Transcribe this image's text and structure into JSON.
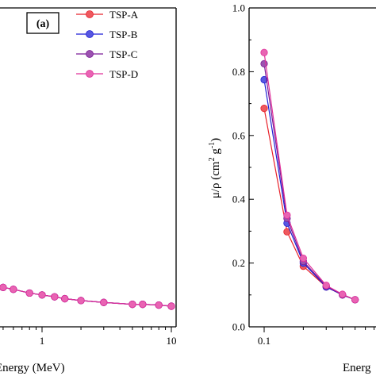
{
  "chart_data": [
    {
      "type": "line",
      "panel_label": "(a)",
      "xlabel": "Energy (MeV)",
      "x_scale": "log",
      "x_ticks": [
        {
          "value": 1,
          "label": "1"
        },
        {
          "value": 10,
          "label": "10"
        }
      ],
      "legend": {
        "position": "top-right"
      },
      "series": [
        {
          "name": "TSP-A",
          "color": "#e8212a",
          "x": [
            0.3,
            0.4,
            0.5,
            0.6,
            0.8,
            1.0,
            1.25,
            1.5,
            2.0,
            3.0,
            5.0,
            6.0,
            8.0,
            10.0
          ],
          "y": [
            0.12,
            0.11,
            0.105,
            0.1,
            0.09,
            0.085,
            0.08,
            0.075,
            0.07,
            0.065,
            0.06,
            0.06,
            0.058,
            0.055
          ]
        },
        {
          "name": "TSP-B",
          "color": "#1f1fd6",
          "x": [
            0.3,
            0.4,
            0.5,
            0.6,
            0.8,
            1.0,
            1.25,
            1.5,
            2.0,
            3.0,
            5.0,
            6.0,
            8.0,
            10.0
          ],
          "y": [
            0.12,
            0.11,
            0.105,
            0.1,
            0.09,
            0.085,
            0.08,
            0.075,
            0.07,
            0.065,
            0.06,
            0.06,
            0.058,
            0.055
          ]
        },
        {
          "name": "TSP-C",
          "color": "#7a1a96",
          "x": [
            0.3,
            0.4,
            0.5,
            0.6,
            0.8,
            1.0,
            1.25,
            1.5,
            2.0,
            3.0,
            5.0,
            6.0,
            8.0,
            10.0
          ],
          "y": [
            0.12,
            0.11,
            0.105,
            0.1,
            0.09,
            0.085,
            0.08,
            0.075,
            0.07,
            0.065,
            0.06,
            0.06,
            0.058,
            0.055
          ]
        },
        {
          "name": "TSP-D",
          "color": "#e0309a",
          "x": [
            0.3,
            0.4,
            0.5,
            0.6,
            0.8,
            1.0,
            1.25,
            1.5,
            2.0,
            3.0,
            5.0,
            6.0,
            8.0,
            10.0
          ],
          "y": [
            0.12,
            0.11,
            0.105,
            0.1,
            0.09,
            0.085,
            0.08,
            0.075,
            0.07,
            0.065,
            0.06,
            0.06,
            0.058,
            0.055
          ]
        }
      ],
      "colors": {
        "TSP-A": "#e8212a",
        "TSP-B": "#1f1fd6",
        "TSP-C": "#7a1a96",
        "TSP-D": "#e0309a"
      }
    },
    {
      "type": "line",
      "xlabel": "Energ",
      "ylabel_main": "μ/ρ (cm",
      "ylabel_sup": "2",
      "ylabel_mid": " g",
      "ylabel_sup2": "-1",
      "ylabel_end": ")",
      "x_scale": "log",
      "x_ticks": [
        {
          "value": 0.1,
          "label": "0.1"
        }
      ],
      "ylim": [
        0.0,
        1.0
      ],
      "y_ticks": [
        {
          "value": 0.0,
          "label": "0.0"
        },
        {
          "value": 0.2,
          "label": "0.2"
        },
        {
          "value": 0.4,
          "label": "0.4"
        },
        {
          "value": 0.6,
          "label": "0.6"
        },
        {
          "value": 0.8,
          "label": "0.8"
        },
        {
          "value": 1.0,
          "label": "1.0"
        }
      ],
      "series": [
        {
          "name": "TSP-A",
          "color": "#e8212a",
          "x": [
            0.1,
            0.15,
            0.2,
            0.3,
            0.4,
            0.5
          ],
          "y": [
            0.685,
            0.298,
            0.19,
            0.125,
            0.1,
            0.085
          ]
        },
        {
          "name": "TSP-B",
          "color": "#1f1fd6",
          "x": [
            0.1,
            0.15,
            0.2,
            0.3,
            0.4,
            0.5
          ],
          "y": [
            0.775,
            0.325,
            0.2,
            0.125,
            0.1,
            0.085
          ]
        },
        {
          "name": "TSP-C",
          "color": "#7a1a96",
          "x": [
            0.1,
            0.15,
            0.2,
            0.3,
            0.4,
            0.5
          ],
          "y": [
            0.825,
            0.34,
            0.205,
            0.128,
            0.1,
            0.085
          ]
        },
        {
          "name": "TSP-D",
          "color": "#e0309a",
          "x": [
            0.1,
            0.15,
            0.2,
            0.3,
            0.4,
            0.5
          ],
          "y": [
            0.86,
            0.35,
            0.215,
            0.13,
            0.102,
            0.085
          ]
        }
      ]
    }
  ]
}
